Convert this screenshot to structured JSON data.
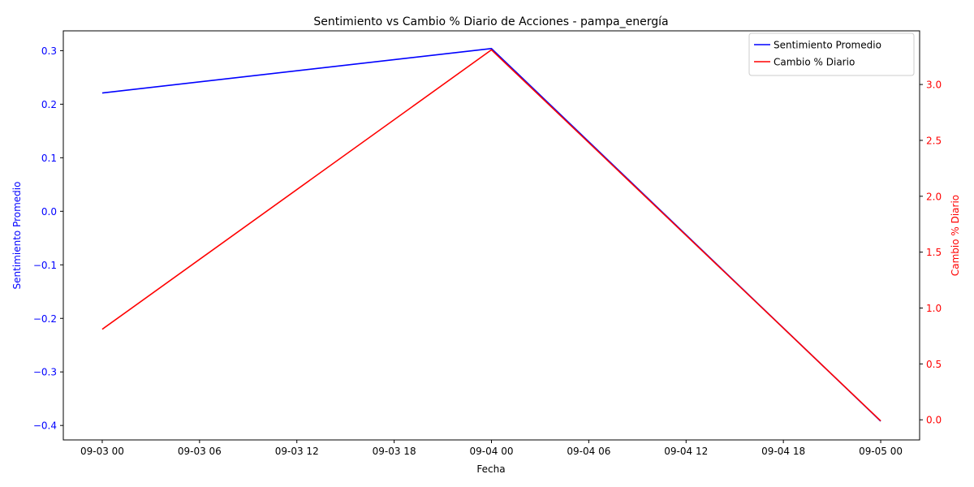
{
  "chart_data": {
    "type": "line",
    "title": "Sentimiento vs Cambio % Diario de Acciones - pampa_energía",
    "xlabel": "Fecha",
    "ylabel_left": "Sentimiento Promedio",
    "ylabel_right": "Cambio % Diario",
    "x_ticks": [
      "09-03 00",
      "09-03 06",
      "09-03 12",
      "09-03 18",
      "09-04 00",
      "09-04 06",
      "09-04 12",
      "09-04 18",
      "09-05 00"
    ],
    "x_tick_hours": [
      0,
      6,
      12,
      18,
      24,
      30,
      36,
      42,
      48
    ],
    "x_range_hours": [
      -2.4,
      50.4
    ],
    "y_left_ticks": [
      "−0.4",
      "−0.3",
      "−0.2",
      "−0.1",
      "0.0",
      "0.1",
      "0.2",
      "0.3"
    ],
    "y_left_tick_values": [
      -0.4,
      -0.3,
      -0.2,
      -0.1,
      0.0,
      0.1,
      0.2,
      0.3
    ],
    "y_left_range": [
      -0.427,
      0.337
    ],
    "y_right_ticks": [
      "0.0",
      "0.5",
      "1.0",
      "1.5",
      "2.0",
      "2.5",
      "3.0"
    ],
    "y_right_tick_values": [
      0.0,
      0.5,
      1.0,
      1.5,
      2.0,
      2.5,
      3.0
    ],
    "y_right_range": [
      -0.18,
      3.48
    ],
    "grid": false,
    "legend_position": "top-right",
    "series": [
      {
        "name": "Sentimiento Promedio",
        "axis": "left",
        "color": "#0000ff",
        "x_hours": [
          0,
          24,
          48
        ],
        "values": [
          0.221,
          0.304,
          -0.392
        ]
      },
      {
        "name": "Cambio % Diario",
        "axis": "right",
        "color": "#ff0000",
        "x_hours": [
          0,
          24,
          48
        ],
        "values": [
          0.81,
          3.31,
          -0.01
        ]
      }
    ]
  }
}
